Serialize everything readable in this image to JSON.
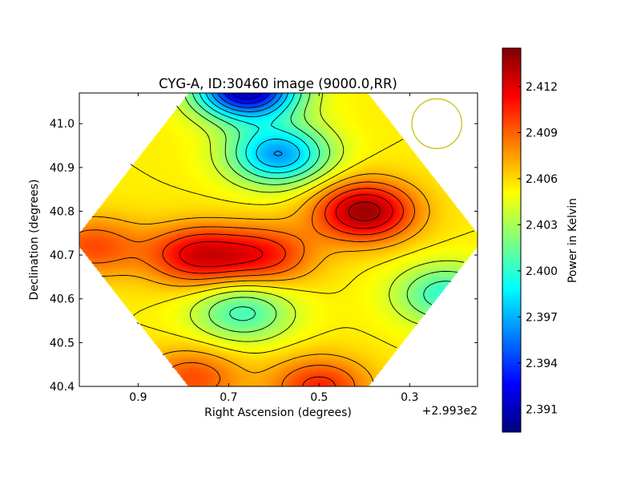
{
  "chart_data": {
    "type": "heatmap",
    "title": "CYG-A, ID:30460 image (9000.0,RR)",
    "xlabel": "Right Ascension (degrees)",
    "ylabel": "Declination (degrees)",
    "x_offset_label": "+2.993e2",
    "x_ticks": [
      {
        "value": 0.9,
        "label": "0.9"
      },
      {
        "value": 0.7,
        "label": "0.7"
      },
      {
        "value": 0.5,
        "label": "0.5"
      },
      {
        "value": 0.3,
        "label": "0.3"
      }
    ],
    "y_ticks": [
      {
        "value": 41.0,
        "label": "41.0"
      },
      {
        "value": 40.9,
        "label": "40.9"
      },
      {
        "value": 40.8,
        "label": "40.8"
      },
      {
        "value": 40.7,
        "label": "40.7"
      },
      {
        "value": 40.6,
        "label": "40.6"
      },
      {
        "value": 40.5,
        "label": "40.5"
      },
      {
        "value": 40.4,
        "label": "40.4"
      }
    ],
    "xlim": [
      1.03,
      0.15
    ],
    "ylim": [
      40.4,
      41.07
    ],
    "x_inverted": true,
    "colorbar": {
      "label": "Power in Kelvin",
      "range": [
        2.3895,
        2.4145
      ],
      "colormap": "jet",
      "ticks": [
        {
          "value": 2.391,
          "label": "2.391"
        },
        {
          "value": 2.394,
          "label": "2.394"
        },
        {
          "value": 2.397,
          "label": "2.397"
        },
        {
          "value": 2.4,
          "label": "2.400"
        },
        {
          "value": 2.403,
          "label": "2.403"
        },
        {
          "value": 2.406,
          "label": "2.406"
        },
        {
          "value": 2.409,
          "label": "2.409"
        },
        {
          "value": 2.412,
          "label": "2.412"
        }
      ]
    },
    "background_level": 2.4055,
    "features": [
      {
        "kind": "trough",
        "ra": 0.66,
        "dec": 41.08,
        "level": 2.3905
      },
      {
        "kind": "trough",
        "ra": 0.59,
        "dec": 40.93,
        "level": 2.3965
      },
      {
        "kind": "peak",
        "ra": 0.4,
        "dec": 40.8,
        "level": 2.4138
      },
      {
        "kind": "peak",
        "ra": 0.77,
        "dec": 40.7,
        "level": 2.4118
      },
      {
        "kind": "peak",
        "ra": 0.62,
        "dec": 40.7,
        "level": 2.4105
      },
      {
        "kind": "trough",
        "ra": 0.67,
        "dec": 40.57,
        "level": 2.4005
      },
      {
        "kind": "trough",
        "ra": 0.22,
        "dec": 40.61,
        "level": 2.4
      },
      {
        "kind": "peak",
        "ra": 0.5,
        "dec": 40.4,
        "level": 2.4105
      },
      {
        "kind": "peak",
        "ra": 0.78,
        "dec": 40.42,
        "level": 2.4095
      },
      {
        "kind": "peak",
        "ra": 1.0,
        "dec": 40.72,
        "level": 2.4095
      }
    ],
    "contour_levels": [
      2.392,
      2.3935,
      2.395,
      2.3965,
      2.398,
      2.3995,
      2.401,
      2.4025,
      2.404,
      2.4055,
      2.407,
      2.4085,
      2.41,
      2.4115,
      2.413
    ],
    "beam": {
      "ra": 0.24,
      "dec": 41.0,
      "radius_deg": 0.055,
      "color": "#bfbf00"
    },
    "grid": false,
    "legend": "none"
  }
}
